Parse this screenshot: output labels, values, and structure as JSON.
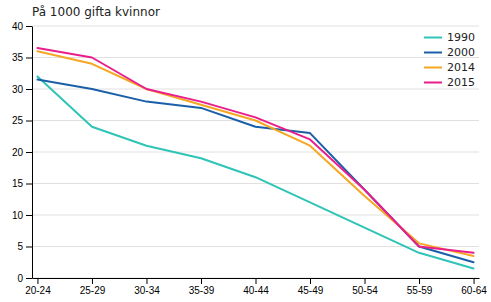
{
  "chart_data": {
    "type": "line",
    "title": "På 1000 gifta kvinnor",
    "categories": [
      "20-24",
      "25-29",
      "30-34",
      "35-39",
      "40-44",
      "45-49",
      "50-54",
      "55-59",
      "60-64"
    ],
    "series": [
      {
        "name": "1990",
        "color": "#2ec4b6",
        "values": [
          32,
          24,
          21,
          19,
          16,
          12,
          8,
          4,
          1.5
        ]
      },
      {
        "name": "2000",
        "color": "#1a5fa8",
        "values": [
          31.5,
          30,
          28,
          27,
          24,
          23,
          14,
          5,
          2.5
        ]
      },
      {
        "name": "2014",
        "color": "#f5a623",
        "values": [
          36,
          34,
          30,
          27.5,
          25,
          21,
          13,
          5.5,
          3.5
        ]
      },
      {
        "name": "2015",
        "color": "#e91e8c",
        "values": [
          36.5,
          35,
          30,
          28,
          25.5,
          22,
          14,
          5,
          4
        ]
      }
    ],
    "ylim": [
      0,
      40
    ],
    "yticks": [
      0,
      5,
      10,
      15,
      20,
      25,
      30,
      35,
      40
    ],
    "grid": true,
    "legend": "upper-right"
  }
}
